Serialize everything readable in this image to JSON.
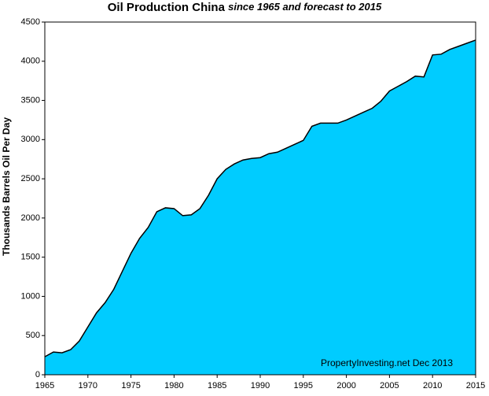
{
  "chart_data": {
    "type": "area",
    "title": "Oil Production China",
    "subtitle": "since 1965 and forecast to 2015",
    "y_label": "Thousands Barrels Oil Per Day",
    "annotation": "PropertyInvesting.net  Dec 2013",
    "x": [
      1965,
      1966,
      1967,
      1968,
      1969,
      1970,
      1971,
      1972,
      1973,
      1974,
      1975,
      1976,
      1977,
      1978,
      1979,
      1980,
      1981,
      1982,
      1983,
      1984,
      1985,
      1986,
      1987,
      1988,
      1989,
      1990,
      1991,
      1992,
      1993,
      1994,
      1995,
      1996,
      1997,
      1998,
      1999,
      2000,
      2001,
      2002,
      2003,
      2004,
      2005,
      2006,
      2007,
      2008,
      2009,
      2010,
      2011,
      2012,
      2013,
      2014,
      2015
    ],
    "values": [
      230,
      290,
      280,
      320,
      430,
      610,
      790,
      920,
      1090,
      1320,
      1550,
      1740,
      1880,
      2080,
      2130,
      2120,
      2030,
      2040,
      2120,
      2290,
      2500,
      2620,
      2690,
      2740,
      2760,
      2770,
      2820,
      2840,
      2890,
      2940,
      2990,
      3170,
      3210,
      3210,
      3210,
      3250,
      3300,
      3350,
      3400,
      3490,
      3620,
      3680,
      3740,
      3810,
      3800,
      4080,
      4090,
      4150,
      4190,
      4230,
      4270
    ],
    "color": "#00ccff",
    "xlim": [
      1965,
      2015
    ],
    "xticks": [
      1965,
      1970,
      1975,
      1980,
      1985,
      1990,
      1995,
      2000,
      2005,
      2010,
      2015
    ],
    "ylim": [
      0,
      4500
    ],
    "yticks": [
      0,
      500,
      1000,
      1500,
      2000,
      2500,
      3000,
      3500,
      4000,
      4500
    ]
  }
}
